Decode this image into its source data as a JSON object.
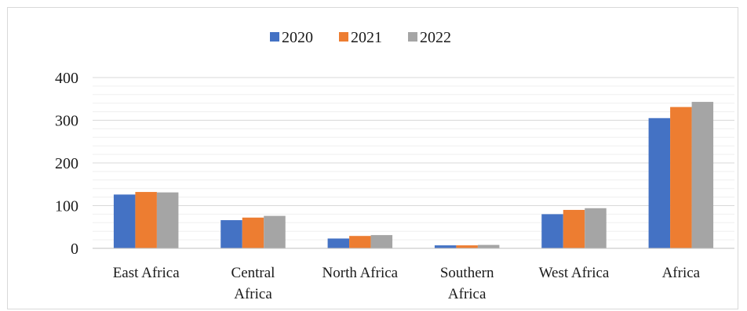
{
  "chart_data": {
    "type": "bar",
    "title": "",
    "xlabel": "",
    "ylabel": "",
    "ylim": [
      0,
      400
    ],
    "yticks": [
      0,
      100,
      200,
      300,
      400
    ],
    "minor_grid_step": 20,
    "grid": true,
    "legend_position": "top",
    "categories": [
      [
        "East Africa"
      ],
      [
        "Central",
        "Africa"
      ],
      [
        "North Africa"
      ],
      [
        "Southern",
        "Africa"
      ],
      [
        "West Africa"
      ],
      [
        "Africa"
      ]
    ],
    "series": [
      {
        "name": "2020",
        "color": "#4472C4",
        "values": [
          126,
          66,
          23,
          7,
          80,
          305
        ]
      },
      {
        "name": "2021",
        "color": "#ED7D31",
        "values": [
          132,
          72,
          29,
          7,
          90,
          331
        ]
      },
      {
        "name": "2022",
        "color": "#A5A5A5",
        "values": [
          131,
          76,
          31,
          8,
          94,
          343
        ]
      }
    ]
  }
}
